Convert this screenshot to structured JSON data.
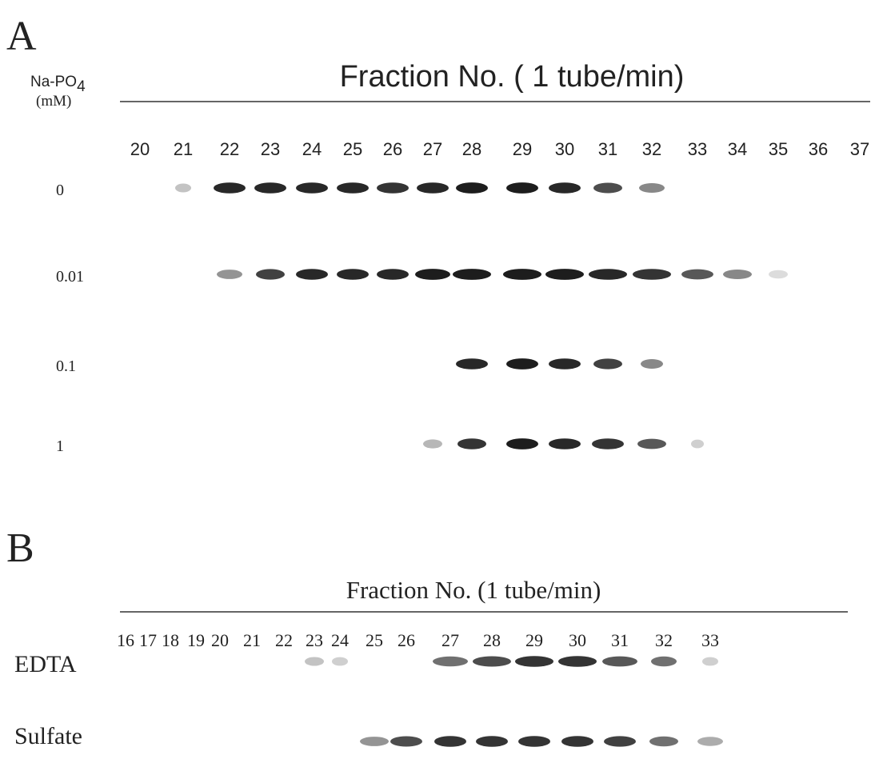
{
  "panels": [
    {
      "label": "A",
      "title": "Fraction No. ( 1 tube/min)",
      "row_header": {
        "name": "Na-PO",
        "subscript": "4",
        "unit": "(mM)"
      },
      "fractions": [
        "20",
        "21",
        "22",
        "23",
        "24",
        "25",
        "26",
        "27",
        "28",
        "29",
        "30",
        "31",
        "32",
        "33",
        "34",
        "35",
        "36",
        "37"
      ],
      "rows": [
        "0",
        "0.01",
        "0.1",
        "1"
      ]
    },
    {
      "label": "B",
      "title": "Fraction No. (1 tube/min)",
      "fractions": [
        "16",
        "17",
        "18",
        "19",
        "20",
        "21",
        "22",
        "23",
        "24",
        "25",
        "26",
        "27",
        "28",
        "29",
        "30",
        "31",
        "32",
        "33"
      ],
      "rows": [
        "EDTA",
        "Sulfate"
      ]
    }
  ]
}
